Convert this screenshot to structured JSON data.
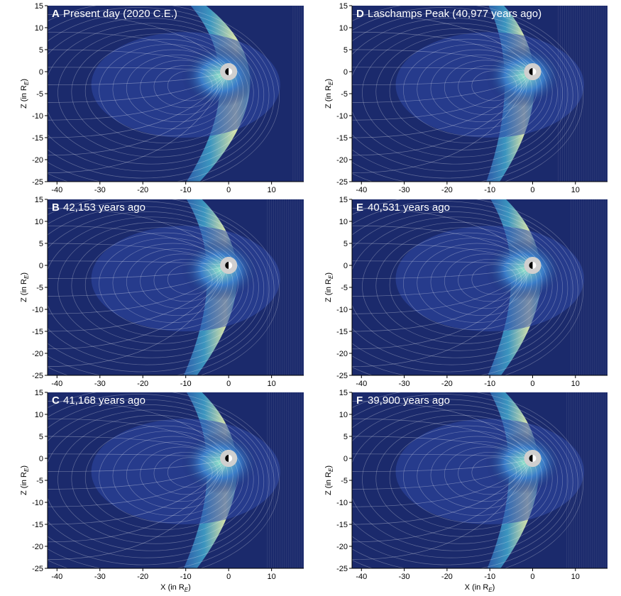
{
  "chart_data": [
    {
      "type": "field",
      "panel": "A",
      "title": "Present day (2020 C.E.)",
      "xlim": [
        -42.2,
        17.5
      ],
      "ylim": [
        -25,
        15
      ],
      "xticks": [
        -40,
        -30,
        -20,
        -10,
        0,
        10
      ],
      "yticks": [
        15,
        10,
        5,
        0,
        -5,
        -10,
        -15,
        -20,
        -25
      ],
      "ylabel": [
        "Z (in R",
        "E",
        ")"
      ]
    },
    {
      "type": "field",
      "panel": "B",
      "title": "42,153 years ago",
      "xlim": [
        -42.2,
        17.5
      ],
      "ylim": [
        -25,
        15
      ],
      "xticks": [
        -40,
        -30,
        -20,
        -10,
        0,
        10
      ],
      "yticks": [
        15,
        10,
        5,
        0,
        -5,
        -10,
        -15,
        -20,
        -25
      ],
      "ylabel": [
        "Z (in R",
        "E",
        ")"
      ]
    },
    {
      "type": "field",
      "panel": "C",
      "title": "41,168 years ago",
      "xlim": [
        -42.2,
        17.5
      ],
      "ylim": [
        -25,
        15
      ],
      "xticks": [
        -40,
        -30,
        -20,
        -10,
        0,
        10
      ],
      "yticks": [
        15,
        10,
        5,
        0,
        -5,
        -10,
        -15,
        -20,
        -25
      ],
      "ylabel": [
        "Z (in R",
        "E",
        ")"
      ],
      "xlabel": [
        "X (in R",
        "E",
        ")"
      ]
    },
    {
      "type": "field",
      "panel": "D",
      "title": "Laschamps Peak (40,977 years ago)",
      "xlim": [
        -42.2,
        17.5
      ],
      "ylim": [
        -25,
        15
      ],
      "xticks": [
        -40,
        -30,
        -20,
        -10,
        0,
        10
      ],
      "yticks": [
        15,
        10,
        5,
        0,
        -5,
        -10,
        -15,
        -20,
        -25
      ],
      "ylabel": [
        "Z (in R",
        "E",
        ")"
      ]
    },
    {
      "type": "field",
      "panel": "E",
      "title": "40,531 years ago",
      "xlim": [
        -42.2,
        17.5
      ],
      "ylim": [
        -25,
        15
      ],
      "xticks": [
        -40,
        -30,
        -20,
        -10,
        0,
        10
      ],
      "yticks": [
        15,
        10,
        5,
        0,
        -5,
        -10,
        -15,
        -20,
        -25
      ],
      "ylabel": [
        "Z (in R",
        "E",
        ")"
      ]
    },
    {
      "type": "field",
      "panel": "F",
      "title": "39,900 years ago",
      "xlim": [
        -42.2,
        17.5
      ],
      "ylim": [
        -25,
        15
      ],
      "xticks": [
        -40,
        -30,
        -20,
        -10,
        0,
        10
      ],
      "yticks": [
        15,
        10,
        5,
        0,
        -5,
        -10,
        -15,
        -20,
        -25
      ],
      "ylabel": [
        "Z (in R",
        "E",
        ")"
      ],
      "xlabel": [
        "X (in R",
        "E",
        ")"
      ]
    }
  ]
}
